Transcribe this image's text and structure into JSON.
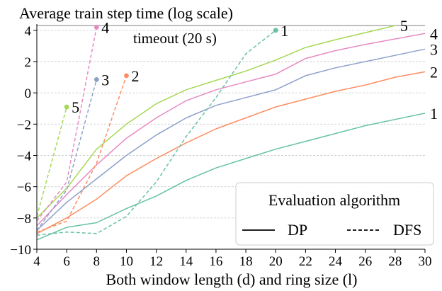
{
  "chart_data": {
    "type": "line",
    "title": "Average train step time (log scale)",
    "xlabel": "Both window length (d) and ring size (l)",
    "ylabel": "",
    "xlim": [
      4,
      30
    ],
    "ylim": [
      -10,
      4.4
    ],
    "xticks": [
      4,
      6,
      8,
      10,
      12,
      14,
      16,
      18,
      20,
      22,
      24,
      26,
      28,
      30
    ],
    "yticks": [
      -10,
      -8,
      -6,
      -4,
      -2,
      0,
      2,
      4
    ],
    "grid": "horizontal dashed",
    "timeout": {
      "y": 4.3,
      "label": "timeout (20 s)"
    },
    "legend": {
      "title": "Evaluation algorithm",
      "entries": [
        {
          "label": "DP",
          "style": "solid"
        },
        {
          "label": "DFS",
          "style": "dashed"
        }
      ],
      "placement": "lower-right"
    },
    "series": [
      {
        "label": "1",
        "algorithm": "DP",
        "color": "#66c2a5",
        "x": [
          4,
          6,
          8,
          10,
          12,
          14,
          16,
          18,
          20,
          22,
          24,
          26,
          28,
          30
        ],
        "y": [
          -9.4,
          -8.6,
          -8.3,
          -7.4,
          -6.6,
          -5.6,
          -4.8,
          -4.2,
          -3.6,
          -3.1,
          -2.6,
          -2.1,
          -1.7,
          -1.3
        ]
      },
      {
        "label": "2",
        "algorithm": "DP",
        "color": "#fc8d62",
        "x": [
          4,
          6,
          8,
          10,
          12,
          14,
          16,
          18,
          20,
          22,
          24,
          26,
          28,
          30
        ],
        "y": [
          -9.0,
          -8.0,
          -6.8,
          -5.3,
          -4.2,
          -3.2,
          -2.3,
          -1.6,
          -0.9,
          -0.4,
          0.1,
          0.5,
          1.0,
          1.35
        ]
      },
      {
        "label": "3",
        "algorithm": "DP",
        "color": "#8da0cb",
        "x": [
          4,
          6,
          8,
          10,
          12,
          14,
          16,
          18,
          20,
          22,
          24,
          26,
          28,
          30
        ],
        "y": [
          -8.8,
          -7.0,
          -5.5,
          -4.0,
          -2.7,
          -1.6,
          -0.8,
          -0.3,
          0.2,
          1.1,
          1.6,
          2.0,
          2.4,
          2.8
        ]
      },
      {
        "label": "4",
        "algorithm": "DP",
        "color": "#e78ac3",
        "x": [
          4,
          6,
          8,
          10,
          12,
          14,
          16,
          18,
          20,
          22,
          24,
          26,
          28,
          30
        ],
        "y": [
          -8.5,
          -6.5,
          -4.6,
          -2.9,
          -1.6,
          -0.5,
          0.2,
          0.7,
          1.2,
          2.2,
          2.7,
          3.1,
          3.45,
          3.8
        ]
      },
      {
        "label": "5",
        "algorithm": "DP",
        "color": "#a6d854",
        "x": [
          4,
          6,
          8,
          10,
          12,
          14,
          16,
          18,
          20,
          22,
          24,
          26,
          28
        ],
        "y": [
          -8.0,
          -6.1,
          -3.6,
          -2.0,
          -0.7,
          0.2,
          0.8,
          1.4,
          2.1,
          2.9,
          3.4,
          3.85,
          4.3
        ]
      },
      {
        "label": "1",
        "algorithm": "DFS",
        "color": "#66c2a5",
        "x": [
          4,
          6,
          8,
          10,
          12,
          14,
          16,
          18,
          20
        ],
        "y": [
          -9.1,
          -8.9,
          -9.0,
          -7.9,
          -5.7,
          -2.8,
          -0.3,
          2.5,
          4.0
        ]
      },
      {
        "label": "2",
        "algorithm": "DFS",
        "color": "#fc8d62",
        "x": [
          4,
          6,
          8,
          10
        ],
        "y": [
          -8.9,
          -8.2,
          -4.5,
          1.1
        ]
      },
      {
        "label": "3",
        "algorithm": "DFS",
        "color": "#8da0cb",
        "x": [
          4,
          6,
          8
        ],
        "y": [
          -8.8,
          -6.2,
          0.85
        ]
      },
      {
        "label": "4",
        "algorithm": "DFS",
        "color": "#e78ac3",
        "x": [
          4,
          6,
          8
        ],
        "y": [
          -8.2,
          -5.7,
          4.2
        ]
      },
      {
        "label": "5",
        "algorithm": "DFS",
        "color": "#a6d854",
        "x": [
          4,
          6
        ],
        "y": [
          -7.9,
          -0.9
        ]
      }
    ]
  }
}
